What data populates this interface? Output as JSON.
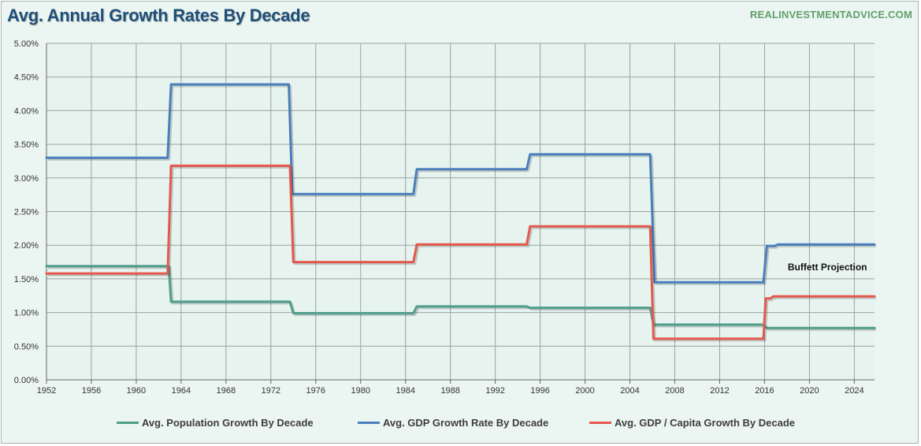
{
  "header": {
    "title": "Avg. Annual Growth Rates By Decade",
    "watermark": "REALINVESTMENTADVICE.COM"
  },
  "chart_data": {
    "type": "line",
    "title": "Avg. Annual Growth Rates By Decade",
    "xlabel": "",
    "ylabel": "",
    "xlim": [
      1952,
      2025.8
    ],
    "ylim": [
      0,
      5.0
    ],
    "y_format": "percent-2dp",
    "x_ticks": [
      1952,
      1956,
      1960,
      1964,
      1968,
      1972,
      1976,
      1980,
      1984,
      1988,
      1992,
      1996,
      2000,
      2004,
      2008,
      2012,
      2016,
      2020,
      2024
    ],
    "x_tick_labels": [
      "1952",
      "1956",
      "1960",
      "1964",
      "1968",
      "1972",
      "1976",
      "1980",
      "1984",
      "1988",
      "1992",
      "1996",
      "2000",
      "2004",
      "2008",
      "2012",
      "2016",
      "2020",
      "2024"
    ],
    "y_ticks": [
      0,
      0.5,
      1.0,
      1.5,
      2.0,
      2.5,
      3.0,
      3.5,
      4.0,
      4.5,
      5.0
    ],
    "y_tick_labels": [
      "0.00%",
      "0.50%",
      "1.00%",
      "1.50%",
      "2.00%",
      "2.50%",
      "3.00%",
      "3.50%",
      "4.00%",
      "4.50%",
      "5.00%"
    ],
    "grid": true,
    "legend_position": "bottom",
    "series": [
      {
        "name": "Avg. Population Growth By Decade",
        "color": "#4f9d8a",
        "x": [
          1952,
          1962.9,
          1963.1,
          1973.7,
          1974.0,
          1984.7,
          1985.0,
          1994.8,
          1995.1,
          2005.8,
          2006.1,
          2015.9,
          2016.2,
          2025.8
        ],
        "y": [
          1.69,
          1.69,
          1.16,
          1.16,
          0.99,
          0.99,
          1.09,
          1.09,
          1.07,
          1.07,
          0.82,
          0.82,
          0.77,
          0.77
        ]
      },
      {
        "name": "Avg. GDP Growth Rate By Decade",
        "color": "#4a7ebb",
        "x": [
          1952,
          1962.8,
          1963.1,
          1973.6,
          1973.9,
          1984.7,
          1985.0,
          1994.8,
          1995.1,
          2005.8,
          2006.2,
          2015.9,
          2016.2,
          2016.9,
          2017.2,
          2025.8
        ],
        "y": [
          3.3,
          3.3,
          4.39,
          4.39,
          2.76,
          2.76,
          3.13,
          3.13,
          3.35,
          3.35,
          1.45,
          1.45,
          1.99,
          1.99,
          2.01,
          2.01
        ]
      },
      {
        "name": "Avg. GDP / Capita Growth By Decade",
        "color": "#e4584d",
        "x": [
          1952,
          1962.8,
          1963.1,
          1973.7,
          1974.0,
          1984.7,
          1985.0,
          1994.8,
          1995.1,
          2005.8,
          2006.1,
          2015.9,
          2016.1,
          2016.5,
          2016.8,
          2025.8
        ],
        "y": [
          1.58,
          1.58,
          3.18,
          3.18,
          1.75,
          1.75,
          2.01,
          2.01,
          2.28,
          2.28,
          0.61,
          0.61,
          1.21,
          1.21,
          1.24,
          1.24
        ]
      }
    ],
    "annotations": [
      {
        "text": "Buffett Projection",
        "x": 2021.6,
        "y": 1.63
      }
    ]
  }
}
